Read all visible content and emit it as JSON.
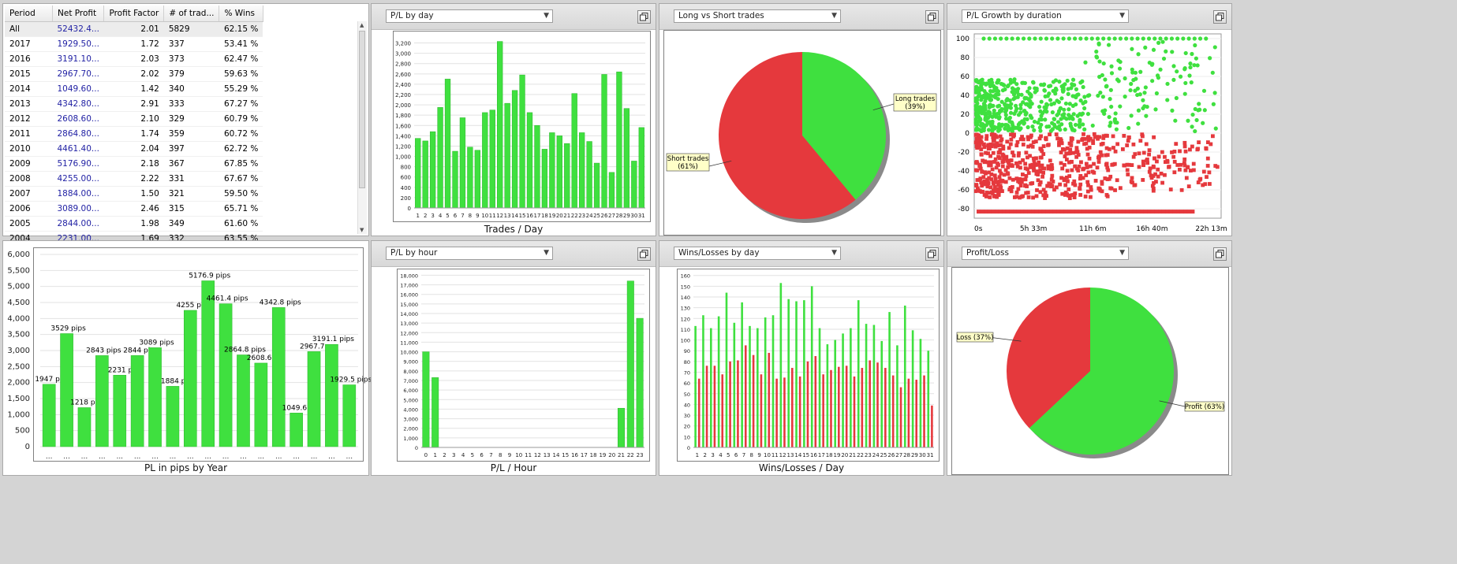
{
  "colors": {
    "green": "#3fe03f",
    "red": "#e5393d",
    "grid": "#e2e2e2"
  },
  "table": {
    "headers": [
      "Period",
      "Net Profit",
      "Profit Factor",
      "# of trad...",
      "% Wins"
    ],
    "rows": [
      [
        "All",
        "52432.4...",
        "2.01",
        "5829",
        "62.15 %"
      ],
      [
        "2017",
        "1929.50...",
        "1.72",
        "337",
        "53.41 %"
      ],
      [
        "2016",
        "3191.10...",
        "2.03",
        "373",
        "62.47 %"
      ],
      [
        "2015",
        "2967.70...",
        "2.02",
        "379",
        "59.63 %"
      ],
      [
        "2014",
        "1049.60...",
        "1.42",
        "340",
        "55.29 %"
      ],
      [
        "2013",
        "4342.80...",
        "2.91",
        "333",
        "67.27 %"
      ],
      [
        "2012",
        "2608.60...",
        "2.10",
        "329",
        "60.79 %"
      ],
      [
        "2011",
        "2864.80...",
        "1.74",
        "359",
        "60.72 %"
      ],
      [
        "2010",
        "4461.40...",
        "2.04",
        "397",
        "62.72 %"
      ],
      [
        "2009",
        "5176.90...",
        "2.18",
        "367",
        "67.85 %"
      ],
      [
        "2008",
        "4255.00...",
        "2.22",
        "331",
        "67.67 %"
      ],
      [
        "2007",
        "1884.00...",
        "1.50",
        "321",
        "59.50 %"
      ],
      [
        "2006",
        "3089.00...",
        "2.46",
        "315",
        "65.71 %"
      ],
      [
        "2005",
        "2844.00...",
        "1.98",
        "349",
        "61.60 %"
      ],
      [
        "2004",
        "2231.00...",
        "1.69",
        "332",
        "63.55 %"
      ]
    ]
  },
  "panels": {
    "pl_day": {
      "select": "P/L by day",
      "caption": "Trades / Day"
    },
    "long_short": {
      "select": "Long vs Short trades"
    },
    "growth": {
      "select": "P/L Growth by duration"
    },
    "pl_hour": {
      "select": "P/L by hour",
      "caption": "P/L / Hour"
    },
    "wins_losses": {
      "select": "Wins/Losses by day",
      "caption": "Wins/Losses / Day"
    },
    "profit_loss": {
      "select": "Profit/Loss"
    },
    "pl_year": {
      "caption": "PL in pips by Year"
    }
  },
  "chart_data": [
    {
      "id": "pl_day",
      "type": "bar",
      "xlabel": "Trades / Day",
      "categories": [
        "1",
        "2",
        "3",
        "4",
        "5",
        "6",
        "7",
        "8",
        "9",
        "10",
        "11",
        "12",
        "13",
        "14",
        "15",
        "16",
        "17",
        "18",
        "19",
        "20",
        "21",
        "22",
        "23",
        "24",
        "25",
        "26",
        "27",
        "28",
        "29",
        "30",
        "31"
      ],
      "values": [
        1350,
        1300,
        1480,
        1950,
        2500,
        1100,
        1750,
        1180,
        1120,
        1850,
        1900,
        3230,
        2030,
        2280,
        2580,
        1850,
        1600,
        1140,
        1460,
        1400,
        1250,
        2220,
        1460,
        1290,
        870,
        2590,
        690,
        2640,
        1930,
        910,
        1560
      ],
      "ylim": [
        0,
        3300
      ],
      "yticks": [
        0,
        200,
        400,
        600,
        800,
        1000,
        1200,
        1400,
        1600,
        1800,
        2000,
        2200,
        2400,
        2600,
        2800,
        3000,
        3200
      ],
      "ytick_labels": [
        "0",
        "200",
        "400",
        "600",
        "800",
        "1,000",
        "1,200",
        "1,400",
        "1,600",
        "1,800",
        "2,000",
        "2,200",
        "2,400",
        "2,600",
        "2,800",
        "3,000",
        "3,200"
      ]
    },
    {
      "id": "long_short",
      "type": "pie",
      "slices": [
        {
          "label": "Long trades",
          "pct_label": "(39%)",
          "value": 39
        },
        {
          "label": "Short trades",
          "pct_label": "(61%)",
          "value": 61
        }
      ]
    },
    {
      "id": "growth",
      "type": "scatter",
      "xticks": [
        "0s",
        "5h 33m",
        "11h 6m",
        "16h 40m",
        "22h 13m"
      ],
      "yticks": [
        -80,
        -60,
        -40,
        -20,
        0,
        20,
        40,
        60,
        80,
        100
      ],
      "ylim": [
        -90,
        105
      ]
    },
    {
      "id": "pl_hour",
      "type": "bar",
      "xlabel": "P/L / Hour",
      "categories": [
        "0",
        "1",
        "2",
        "3",
        "4",
        "5",
        "6",
        "7",
        "8",
        "9",
        "10",
        "11",
        "12",
        "13",
        "14",
        "15",
        "16",
        "17",
        "18",
        "19",
        "20",
        "21",
        "22",
        "23"
      ],
      "values": [
        10000,
        7300,
        0,
        0,
        0,
        0,
        0,
        0,
        0,
        0,
        0,
        0,
        0,
        0,
        0,
        0,
        0,
        0,
        0,
        0,
        0,
        4100,
        17400,
        13500
      ],
      "ylim": [
        0,
        18200
      ],
      "yticks": [
        0,
        1000,
        2000,
        3000,
        4000,
        5000,
        6000,
        7000,
        8000,
        9000,
        10000,
        11000,
        12000,
        13000,
        14000,
        15000,
        16000,
        17000,
        18000
      ],
      "ytick_labels": [
        "0",
        "1,000",
        "2,000",
        "3,000",
        "4,000",
        "5,000",
        "6,000",
        "7,000",
        "8,000",
        "9,000",
        "10,000",
        "11,000",
        "12,000",
        "13,000",
        "14,000",
        "15,000",
        "16,000",
        "17,000",
        "18,000"
      ]
    },
    {
      "id": "wins_losses",
      "type": "bar",
      "xlabel": "Wins/Losses / Day",
      "categories": [
        "1",
        "2",
        "3",
        "4",
        "5",
        "6",
        "7",
        "8",
        "9",
        "10",
        "11",
        "12",
        "13",
        "14",
        "15",
        "16",
        "17",
        "18",
        "19",
        "20",
        "21",
        "22",
        "23",
        "24",
        "25",
        "26",
        "27",
        "28",
        "29",
        "30",
        "31"
      ],
      "series": [
        {
          "name": "Wins",
          "values": [
            113,
            123,
            111,
            122,
            144,
            116,
            135,
            113,
            111,
            121,
            123,
            153,
            138,
            136,
            137,
            150,
            111,
            96,
            100,
            106,
            111,
            137,
            115,
            114,
            99,
            126,
            95,
            132,
            109,
            101,
            90
          ]
        },
        {
          "name": "Losses",
          "values": [
            64,
            76,
            76,
            68,
            80,
            81,
            95,
            86,
            68,
            88,
            64,
            65,
            74,
            66,
            80,
            85,
            68,
            72,
            75,
            76,
            66,
            74,
            81,
            79,
            74,
            67,
            56,
            64,
            63,
            67,
            39
          ]
        }
      ],
      "ylim": [
        0,
        162
      ],
      "yticks": [
        0,
        10,
        20,
        30,
        40,
        50,
        60,
        70,
        80,
        90,
        100,
        110,
        120,
        130,
        140,
        150,
        160
      ],
      "ytick_labels": [
        "0",
        "10",
        "20",
        "30",
        "40",
        "50",
        "60",
        "70",
        "80",
        "90",
        "100",
        "110",
        "120",
        "130",
        "140",
        "150",
        "160"
      ]
    },
    {
      "id": "profit_loss",
      "type": "pie",
      "slices": [
        {
          "label": "Profit",
          "pct_label": "(63%)",
          "value": 63
        },
        {
          "label": "Loss",
          "pct_label": "(37%)",
          "value": 37
        }
      ]
    },
    {
      "id": "pl_year",
      "type": "bar",
      "xlabel": "PL in pips by Year",
      "values": [
        1947,
        3529,
        1218,
        2843,
        2231,
        2844,
        3089,
        1884,
        4255,
        5176.9,
        4461.4,
        2864.8,
        2608.6,
        4342.8,
        1049.6,
        2967.7,
        3191.1,
        1929.5
      ],
      "data_labels": [
        "1947 pip",
        "3529 pips",
        "1218 pip",
        "2843 pips",
        "2231 pi",
        "2844 pip",
        "3089 pips",
        "1884 pi",
        "4255 pip",
        "5176.9 pips",
        "4461.4 pips",
        "2864.8 pips",
        "2608.6 p",
        "4342.8 pips",
        "1049.6 p",
        "2967.7 p",
        "3191.1 pips",
        "1929.5 pips"
      ],
      "tick_label": "...",
      "ylim": [
        0,
        6000
      ],
      "yticks": [
        0,
        500,
        1000,
        1500,
        2000,
        2500,
        3000,
        3500,
        4000,
        4500,
        5000,
        5500,
        6000
      ],
      "ytick_labels": [
        "0",
        "500",
        "1,000",
        "1,500",
        "2,000",
        "2,500",
        "3,000",
        "3,500",
        "4,000",
        "4,500",
        "5,000",
        "5,500",
        "6,000"
      ]
    }
  ]
}
